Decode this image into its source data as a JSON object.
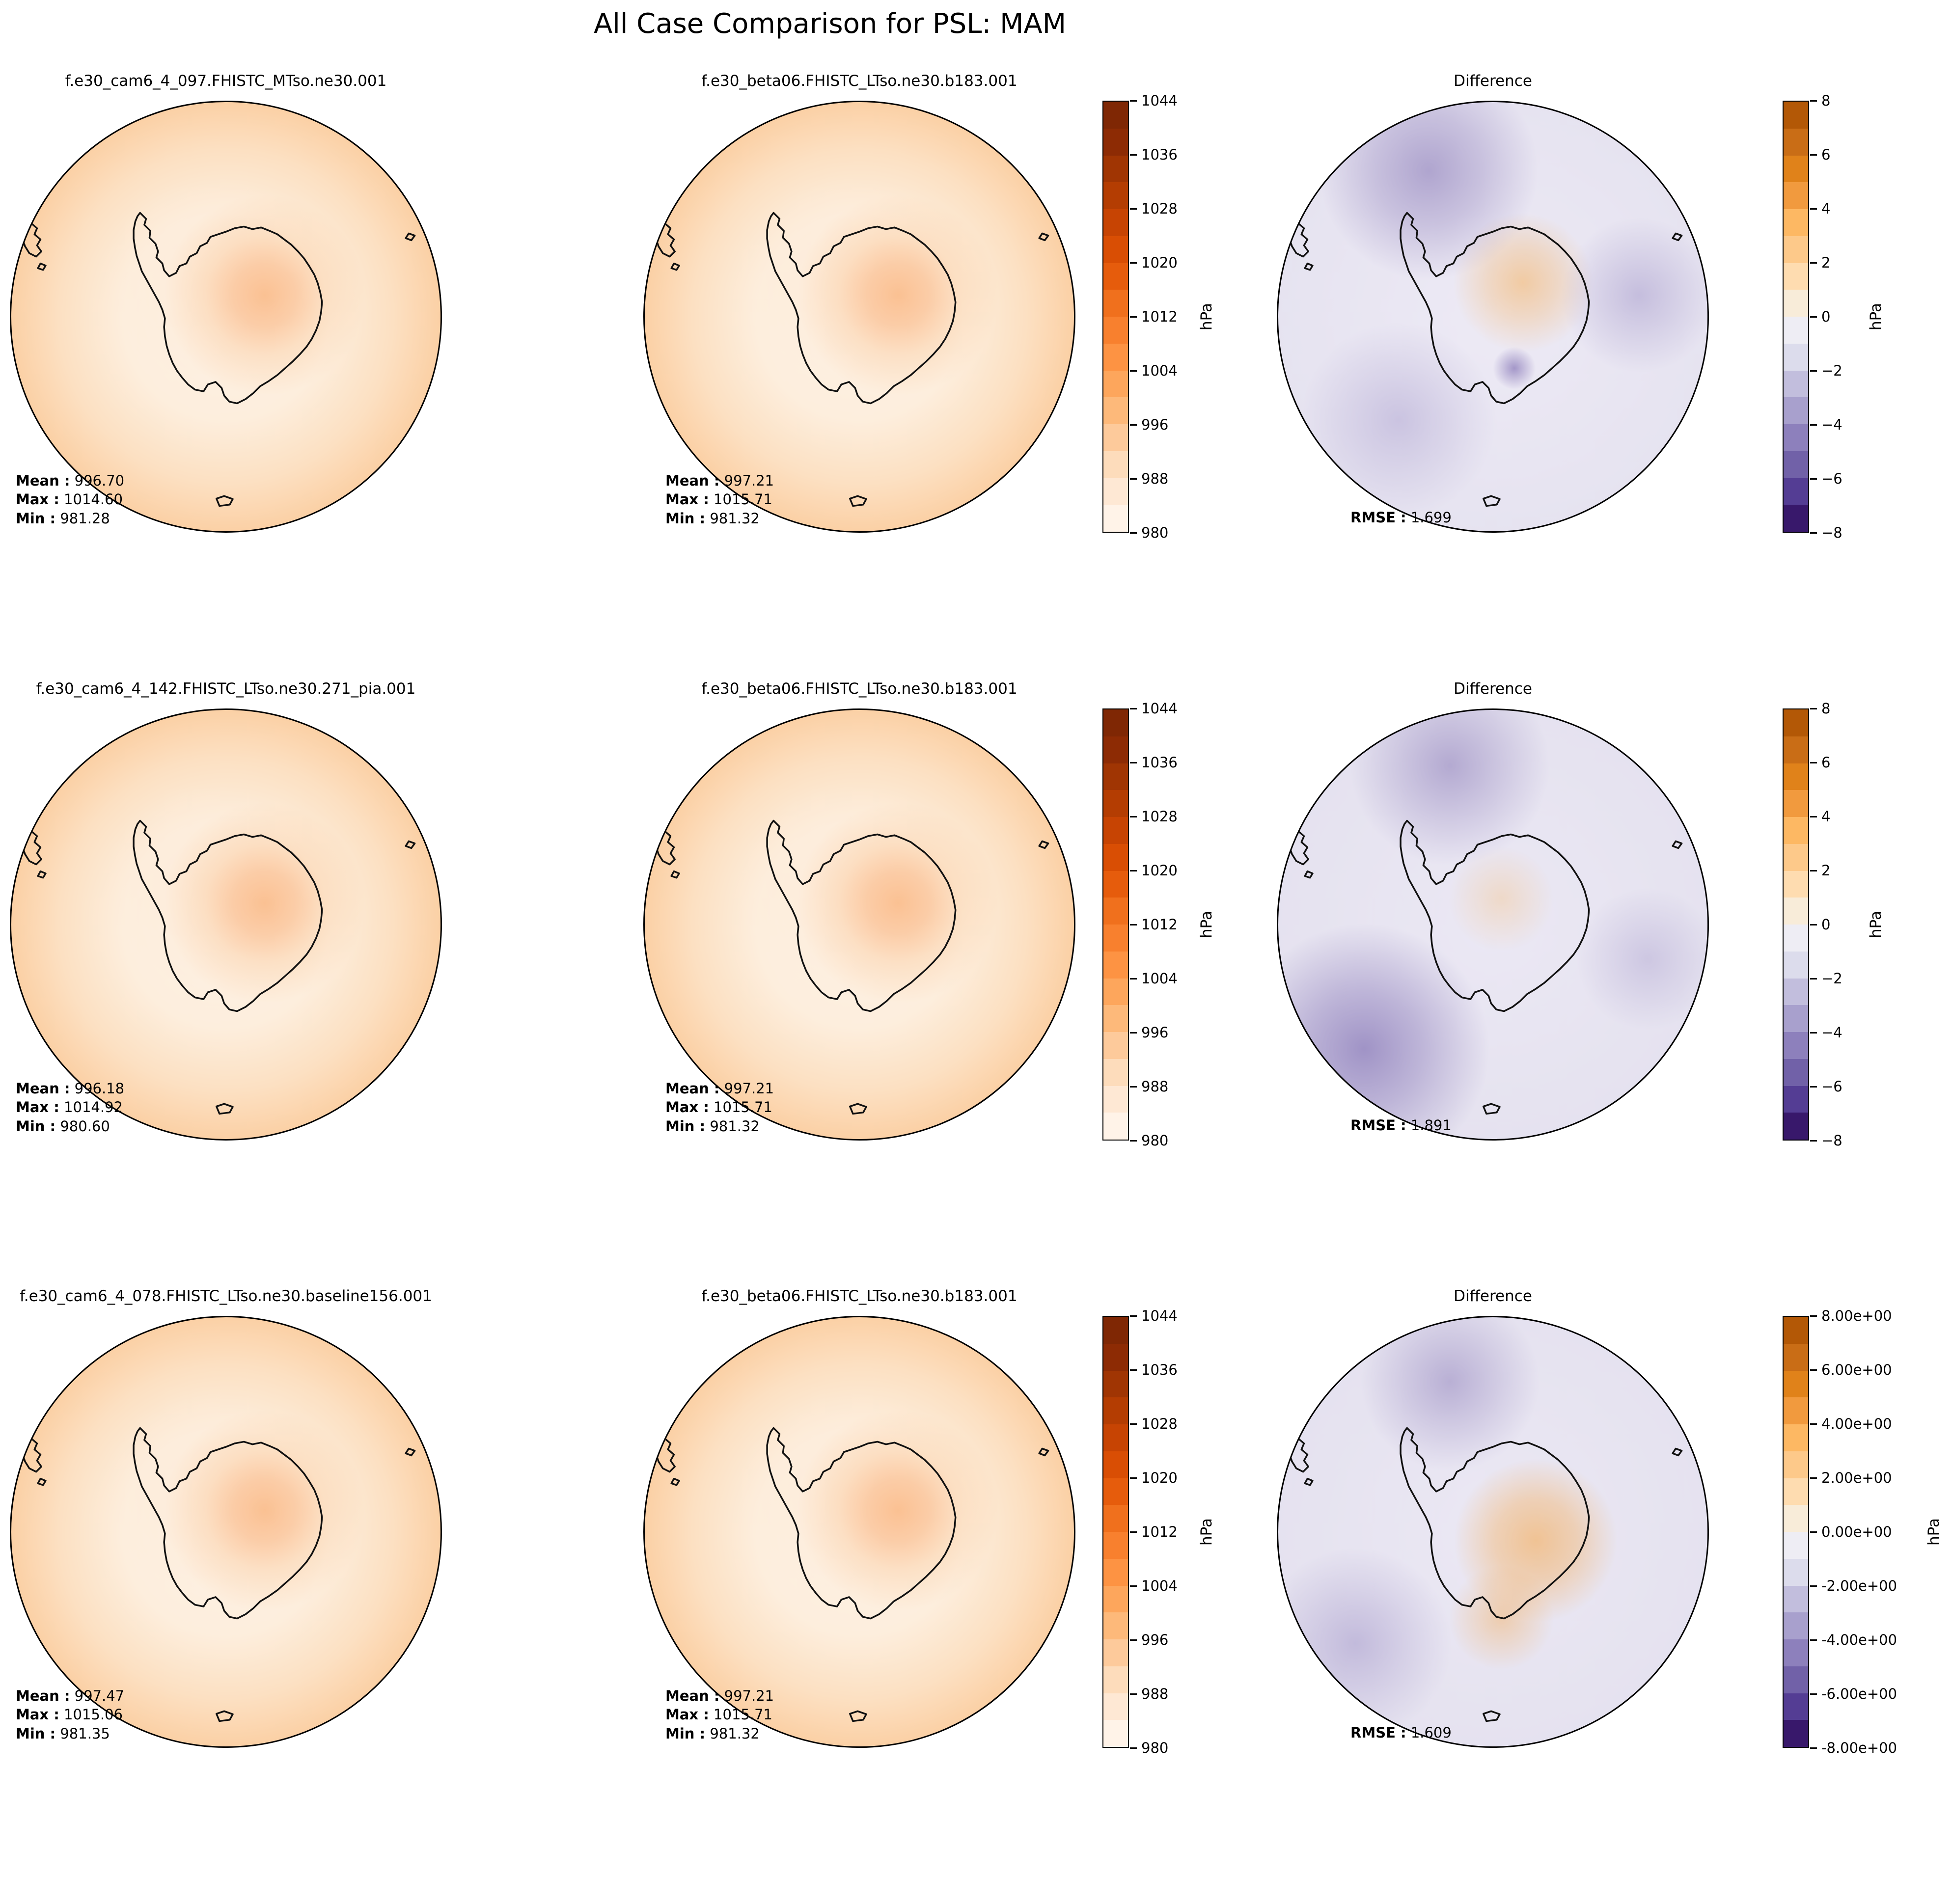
{
  "figure": {
    "title": "All Case Comparison for PSL: MAM"
  },
  "labels": {
    "mean": "Mean :",
    "max": "Max :",
    "min": "Min :",
    "rmse": "RMSE :"
  },
  "pressure_cbar": {
    "label": "hPa",
    "ticks": [
      "1044",
      "1036",
      "1028",
      "1020",
      "1012",
      "1004",
      "996",
      "988",
      "980"
    ]
  },
  "diff_cbar": {
    "label": "hPa",
    "ticks": [
      "8",
      "6",
      "4",
      "2",
      "0",
      "−2",
      "−4",
      "−6",
      "−8"
    ]
  },
  "diff_cbar_sci": {
    "label": "hPa",
    "ticks": [
      "8.00e+00",
      "6.00e+00",
      "4.00e+00",
      "2.00e+00",
      "0.00e+00",
      "-2.00e+00",
      "-4.00e+00",
      "-6.00e+00",
      "-8.00e+00"
    ]
  },
  "rows": [
    {
      "case": {
        "title": "f.e30_cam6_4_097.FHISTC_MTso.ne30.001",
        "mean": "996.70",
        "max": "1014.60",
        "min": "981.28"
      },
      "ref": {
        "title": "f.e30_beta06.FHISTC_LTso.ne30.b183.001",
        "mean": "997.21",
        "max": "1015.71",
        "min": "981.32"
      },
      "diff": {
        "title": "Difference",
        "rmse": "1.699"
      }
    },
    {
      "case": {
        "title": "f.e30_cam6_4_142.FHISTC_LTso.ne30.271_pia.001",
        "mean": "996.18",
        "max": "1014.92",
        "min": "980.60"
      },
      "ref": {
        "title": "f.e30_beta06.FHISTC_LTso.ne30.b183.001",
        "mean": "997.21",
        "max": "1015.71",
        "min": "981.32"
      },
      "diff": {
        "title": "Difference",
        "rmse": "1.891"
      }
    },
    {
      "case": {
        "title": "f.e30_cam6_4_078.FHISTC_LTso.ne30.baseline156.001",
        "mean": "997.47",
        "max": "1015.06",
        "min": "981.35"
      },
      "ref": {
        "title": "f.e30_beta06.FHISTC_LTso.ne30.b183.001",
        "mean": "997.21",
        "max": "1015.71",
        "min": "981.32"
      },
      "diff": {
        "title": "Difference",
        "rmse": "1.609"
      }
    }
  ],
  "colors": {
    "map_edge": "#000000",
    "oranges_cbar_top_to_bottom": [
      "#7f2704",
      "#8d2b04",
      "#a03503",
      "#b43d02",
      "#c74403",
      "#d94e04",
      "#e65c0c",
      "#f0701d",
      "#f8802e",
      "#fd9343",
      "#fda65c",
      "#fdb97a",
      "#fdca9b",
      "#fddcbb",
      "#fee8d4",
      "#fff3e8"
    ],
    "puor_cbar_top_to_bottom": [
      "#b35806",
      "#c96d16",
      "#e0821a",
      "#f19a3e",
      "#fdb863",
      "#fdc98a",
      "#fedcb0",
      "#f8ecd9",
      "#eeedf4",
      "#dcdcec",
      "#c2bedd",
      "#a8a0cd",
      "#8d80bc",
      "#7161a8",
      "#543d94",
      "#38186b"
    ]
  },
  "chart_data": {
    "type": "heatmap",
    "subtype": "south-polar-stereographic map grid (3x3 case comparison)",
    "title": "All Case Comparison for PSL: MAM",
    "variable": "PSL",
    "season": "MAM",
    "units": "hPa",
    "pressure_scale": {
      "min": 980,
      "max": 1044,
      "tick_step": 8,
      "contour_step": 4,
      "cmap": "Oranges"
    },
    "difference_scale": {
      "min": -8,
      "max": 8,
      "tick_step": 2,
      "contour_step": 1,
      "cmap": "PuOr"
    },
    "panels": [
      {
        "row": 1,
        "col": 1,
        "kind": "case",
        "name": "f.e30_cam6_4_097.FHISTC_MTso.ne30.001",
        "mean": 996.7,
        "max": 1014.6,
        "min": 981.28
      },
      {
        "row": 1,
        "col": 2,
        "kind": "reference",
        "name": "f.e30_beta06.FHISTC_LTso.ne30.b183.001",
        "mean": 997.21,
        "max": 1015.71,
        "min": 981.32
      },
      {
        "row": 1,
        "col": 3,
        "kind": "difference",
        "name": "Difference",
        "rmse": 1.699
      },
      {
        "row": 2,
        "col": 1,
        "kind": "case",
        "name": "f.e30_cam6_4_142.FHISTC_LTso.ne30.271_pia.001",
        "mean": 996.18,
        "max": 1014.92,
        "min": 980.6
      },
      {
        "row": 2,
        "col": 2,
        "kind": "reference",
        "name": "f.e30_beta06.FHISTC_LTso.ne30.b183.001",
        "mean": 997.21,
        "max": 1015.71,
        "min": 981.32
      },
      {
        "row": 2,
        "col": 3,
        "kind": "difference",
        "name": "Difference",
        "rmse": 1.891
      },
      {
        "row": 3,
        "col": 1,
        "kind": "case",
        "name": "f.e30_cam6_4_078.FHISTC_LTso.ne30.baseline156.001",
        "mean": 997.47,
        "max": 1015.06,
        "min": 981.35
      },
      {
        "row": 3,
        "col": 2,
        "kind": "reference",
        "name": "f.e30_beta06.FHISTC_LTso.ne30.b183.001",
        "mean": 997.21,
        "max": 1015.71,
        "min": 981.32
      },
      {
        "row": 3,
        "col": 3,
        "kind": "difference",
        "name": "Difference",
        "rmse": 1.609
      }
    ]
  }
}
